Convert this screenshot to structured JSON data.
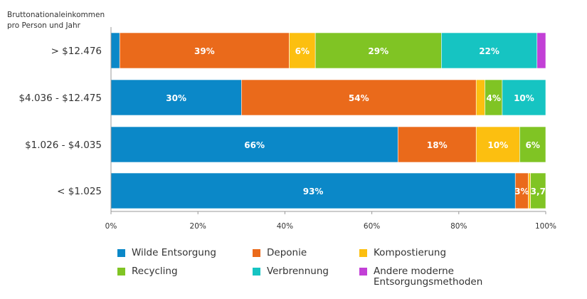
{
  "chart_data": {
    "type": "bar",
    "orientation": "horizontal",
    "stacked": true,
    "ylabel": "Bruttonationaleinkommen pro Person und Jahr",
    "categories": [
      "> $12.476",
      "$4.036 - $12.475",
      "$1.026 - $4.035",
      "< $1.025"
    ],
    "xlim": [
      0,
      100
    ],
    "x_ticks": [
      "0%",
      "20%",
      "40%",
      "60%",
      "80%",
      "100%"
    ],
    "legend_position": "bottom",
    "series": [
      {
        "name": "Wilde Entsorgung",
        "color": "#0b88c8",
        "values": [
          2,
          30,
          66,
          93
        ],
        "labels": [
          "",
          "30%",
          "66%",
          "93%"
        ]
      },
      {
        "name": "Deponie",
        "color": "#ea6a1b",
        "values": [
          39,
          54,
          18,
          3
        ],
        "labels": [
          "39%",
          "54%",
          "18%",
          "3%"
        ]
      },
      {
        "name": "Kompostierung",
        "color": "#fcbf10",
        "values": [
          6,
          2,
          10,
          0.5
        ],
        "labels": [
          "6%",
          "",
          "10%",
          ""
        ]
      },
      {
        "name": "Recycling",
        "color": "#80c424",
        "values": [
          29,
          4,
          6,
          3.7
        ],
        "labels": [
          "29%",
          "4%",
          "6%",
          "3,7"
        ]
      },
      {
        "name": "Verbrennung",
        "color": "#16c4c2",
        "values": [
          22,
          10,
          0,
          0
        ],
        "labels": [
          "22%",
          "10%",
          "",
          ""
        ]
      },
      {
        "name": "Andere moderne Entsorgungsmethoden",
        "color": "#c240d6",
        "values": [
          2,
          0,
          0,
          0
        ],
        "labels": [
          "",
          "",
          "",
          ""
        ]
      }
    ]
  }
}
